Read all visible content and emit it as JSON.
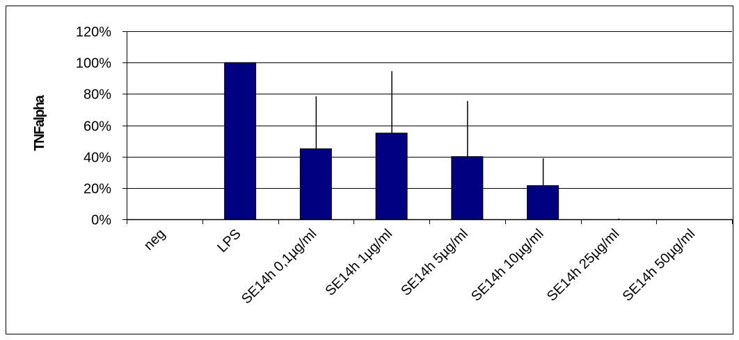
{
  "chart_data": {
    "type": "bar",
    "title": "",
    "xlabel": "",
    "ylabel": "TNFalpha",
    "ylim": [
      0,
      1.2
    ],
    "yticks": [
      0,
      0.2,
      0.4,
      0.6,
      0.8,
      1.0,
      1.2
    ],
    "ytick_labels": [
      "0%",
      "20%",
      "40%",
      "60%",
      "80%",
      "100%",
      "120%"
    ],
    "categories": [
      "neg",
      "LPS",
      "SE14h 0,1µg/ml",
      "SE14h 1µg/ml",
      "SE14h 5µg/ml",
      "SE14h  10µg/ml",
      "SE14h  25µg/ml",
      "SE14h  50µg/ml"
    ],
    "values": [
      0,
      1.0,
      0.45,
      0.55,
      0.4,
      0.215,
      0.0,
      0.0
    ],
    "error_upper": [
      0,
      0,
      0.785,
      0.945,
      0.755,
      0.39,
      0.005,
      0
    ],
    "grid": true,
    "legend": "none",
    "colors": {
      "bar_fill": "#000080",
      "bar_stroke": "#000000",
      "grid": "#000000",
      "axis": "#000000",
      "error_bar": "#000000"
    }
  }
}
